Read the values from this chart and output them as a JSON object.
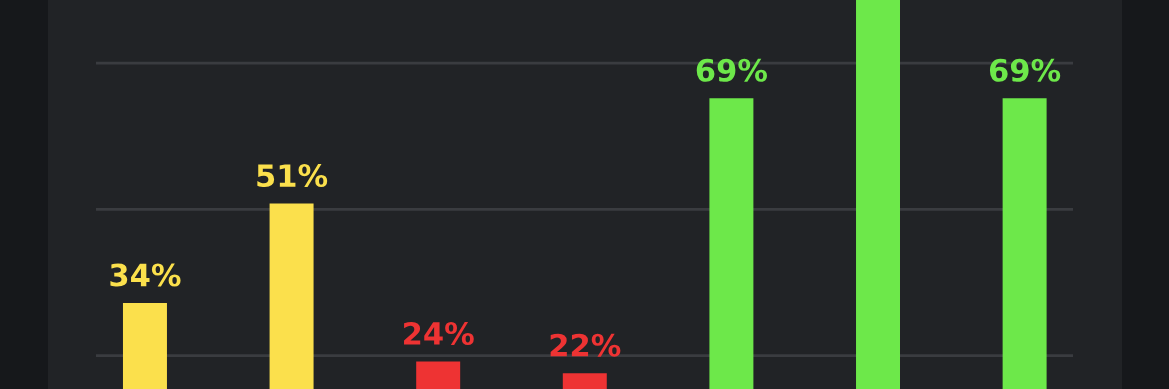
{
  "chart_data": {
    "type": "bar",
    "categories": [
      null,
      null,
      null,
      null,
      null,
      null,
      null
    ],
    "values": [
      34,
      51,
      24,
      22,
      69,
      85.8,
      69
    ],
    "colors": [
      "#fbe04c",
      "#fbe04c",
      "#ee3333",
      "#ee3333",
      "#6de84a",
      "#6de84a",
      "#6de84a"
    ],
    "value_labels": [
      "34%",
      "51%",
      "24%",
      "22%",
      "69%",
      null,
      "69%"
    ],
    "ylim": [
      19.3,
      85.8
    ],
    "yticks": [
      {
        "value": 25,
        "label": null
      },
      {
        "value": 50,
        "label": null
      },
      {
        "value": 75,
        "label": null
      }
    ],
    "grid": "y"
  }
}
